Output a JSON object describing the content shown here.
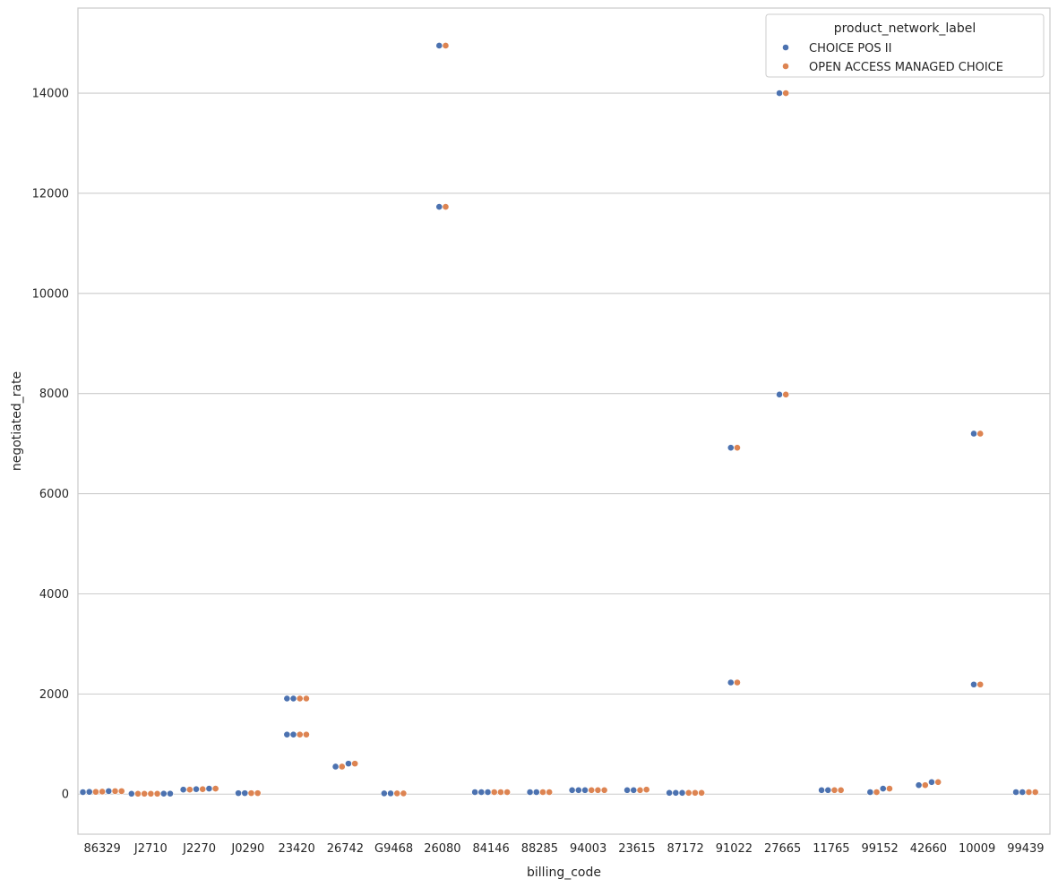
{
  "chart_data": {
    "type": "scatter",
    "subtype": "swarm",
    "xlabel": "billing_code",
    "ylabel": "negotiated_rate",
    "ylim": [
      -800,
      15700
    ],
    "yticks": [
      0,
      2000,
      4000,
      6000,
      8000,
      10000,
      12000,
      14000
    ],
    "grid": true,
    "grid_axis": "y",
    "categories": [
      "86329",
      "J2710",
      "J2270",
      "J0290",
      "23420",
      "26742",
      "G9468",
      "26080",
      "84146",
      "88285",
      "94003",
      "23615",
      "87172",
      "91022",
      "27665",
      "11765",
      "99152",
      "42660",
      "10009",
      "99439"
    ],
    "legend": {
      "title": "product_network_label",
      "placement": "top-right"
    },
    "series": [
      {
        "name": "CHOICE POS II",
        "color": "#4c72b0",
        "points": [
          {
            "x": "86329",
            "y": 60
          },
          {
            "x": "86329",
            "y": 45
          },
          {
            "x": "86329",
            "y": 40
          },
          {
            "x": "J2710",
            "y": 10
          },
          {
            "x": "J2710",
            "y": 10
          },
          {
            "x": "J2710",
            "y": 8
          },
          {
            "x": "J2270",
            "y": 90
          },
          {
            "x": "J2270",
            "y": 100
          },
          {
            "x": "J2270",
            "y": 110
          },
          {
            "x": "J0290",
            "y": 20
          },
          {
            "x": "J0290",
            "y": 20
          },
          {
            "x": "23420",
            "y": 1910
          },
          {
            "x": "23420",
            "y": 1910
          },
          {
            "x": "23420",
            "y": 1190
          },
          {
            "x": "23420",
            "y": 1190
          },
          {
            "x": "26742",
            "y": 550
          },
          {
            "x": "26742",
            "y": 610
          },
          {
            "x": "G9468",
            "y": 15
          },
          {
            "x": "G9468",
            "y": 15
          },
          {
            "x": "26080",
            "y": 14950
          },
          {
            "x": "26080",
            "y": 11730
          },
          {
            "x": "84146",
            "y": 40
          },
          {
            "x": "84146",
            "y": 40
          },
          {
            "x": "84146",
            "y": 40
          },
          {
            "x": "88285",
            "y": 40
          },
          {
            "x": "88285",
            "y": 40
          },
          {
            "x": "94003",
            "y": 80
          },
          {
            "x": "94003",
            "y": 80
          },
          {
            "x": "94003",
            "y": 80
          },
          {
            "x": "23615",
            "y": 80
          },
          {
            "x": "23615",
            "y": 80
          },
          {
            "x": "87172",
            "y": 25
          },
          {
            "x": "87172",
            "y": 25
          },
          {
            "x": "87172",
            "y": 25
          },
          {
            "x": "91022",
            "y": 6920
          },
          {
            "x": "91022",
            "y": 2230
          },
          {
            "x": "27665",
            "y": 14000
          },
          {
            "x": "27665",
            "y": 7980
          },
          {
            "x": "11765",
            "y": 80
          },
          {
            "x": "11765",
            "y": 80
          },
          {
            "x": "99152",
            "y": 40
          },
          {
            "x": "99152",
            "y": 110
          },
          {
            "x": "42660",
            "y": 240
          },
          {
            "x": "42660",
            "y": 180
          },
          {
            "x": "10009",
            "y": 7200
          },
          {
            "x": "10009",
            "y": 2190
          },
          {
            "x": "99439",
            "y": 40
          },
          {
            "x": "99439",
            "y": 40
          }
        ]
      },
      {
        "name": "OPEN ACCESS MANAGED CHOICE",
        "color": "#dd8452",
        "points": [
          {
            "x": "86329",
            "y": 60
          },
          {
            "x": "86329",
            "y": 45
          },
          {
            "x": "86329",
            "y": 50
          },
          {
            "x": "86329",
            "y": 60
          },
          {
            "x": "J2710",
            "y": 8
          },
          {
            "x": "J2710",
            "y": 8
          },
          {
            "x": "J2710",
            "y": 8
          },
          {
            "x": "J2710",
            "y": 8
          },
          {
            "x": "J2270",
            "y": 100
          },
          {
            "x": "J2270",
            "y": 90
          },
          {
            "x": "J2270",
            "y": 110
          },
          {
            "x": "J0290",
            "y": 20
          },
          {
            "x": "J0290",
            "y": 20
          },
          {
            "x": "23420",
            "y": 1910
          },
          {
            "x": "23420",
            "y": 1910
          },
          {
            "x": "23420",
            "y": 1190
          },
          {
            "x": "23420",
            "y": 1190
          },
          {
            "x": "26742",
            "y": 610
          },
          {
            "x": "26742",
            "y": 550
          },
          {
            "x": "G9468",
            "y": 15
          },
          {
            "x": "G9468",
            "y": 15
          },
          {
            "x": "26080",
            "y": 14950
          },
          {
            "x": "26080",
            "y": 11730
          },
          {
            "x": "84146",
            "y": 40
          },
          {
            "x": "84146",
            "y": 40
          },
          {
            "x": "84146",
            "y": 40
          },
          {
            "x": "88285",
            "y": 40
          },
          {
            "x": "88285",
            "y": 40
          },
          {
            "x": "94003",
            "y": 80
          },
          {
            "x": "94003",
            "y": 80
          },
          {
            "x": "94003",
            "y": 80
          },
          {
            "x": "23615",
            "y": 90
          },
          {
            "x": "23615",
            "y": 80
          },
          {
            "x": "87172",
            "y": 25
          },
          {
            "x": "87172",
            "y": 25
          },
          {
            "x": "87172",
            "y": 25
          },
          {
            "x": "91022",
            "y": 6920
          },
          {
            "x": "91022",
            "y": 2230
          },
          {
            "x": "27665",
            "y": 14000
          },
          {
            "x": "27665",
            "y": 7980
          },
          {
            "x": "11765",
            "y": 80
          },
          {
            "x": "11765",
            "y": 80
          },
          {
            "x": "99152",
            "y": 110
          },
          {
            "x": "99152",
            "y": 40
          },
          {
            "x": "42660",
            "y": 180
          },
          {
            "x": "42660",
            "y": 240
          },
          {
            "x": "10009",
            "y": 7200
          },
          {
            "x": "10009",
            "y": 2190
          },
          {
            "x": "99439",
            "y": 40
          },
          {
            "x": "99439",
            "y": 40
          }
        ]
      }
    ]
  }
}
